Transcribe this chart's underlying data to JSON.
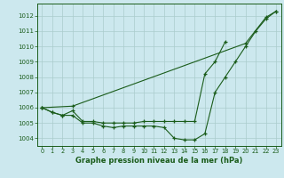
{
  "title": "Graphe pression niveau de la mer (hPa)",
  "background_color": "#cce8ee",
  "grid_color": "#aacccc",
  "line_color": "#1a5c1a",
  "xlim": [
    -0.5,
    23.5
  ],
  "ylim": [
    1003.5,
    1012.8
  ],
  "yticks": [
    1004,
    1005,
    1006,
    1007,
    1008,
    1009,
    1010,
    1011,
    1012
  ],
  "xticks": [
    0,
    1,
    2,
    3,
    4,
    5,
    6,
    7,
    8,
    9,
    10,
    11,
    12,
    13,
    14,
    15,
    16,
    17,
    18,
    19,
    20,
    21,
    22,
    23
  ],
  "hours": [
    0,
    1,
    2,
    3,
    4,
    5,
    6,
    7,
    8,
    9,
    10,
    11,
    12,
    13,
    14,
    15,
    16,
    17,
    18,
    19,
    20,
    21,
    22,
    23
  ],
  "line1": [
    1006.0,
    1005.7,
    1005.5,
    1005.5,
    1005.0,
    1005.0,
    1004.8,
    1004.7,
    1004.8,
    1004.8,
    1004.8,
    1004.8,
    1004.7,
    1004.0,
    1003.9,
    1003.9,
    1004.3,
    1007.0,
    1008.0,
    1009.0,
    1010.0,
    1011.0,
    1011.8,
    1012.3
  ],
  "line2": [
    1006.0,
    1005.7,
    1005.5,
    1005.8,
    1005.1,
    1005.1,
    1005.0,
    1005.0,
    1005.0,
    1005.0,
    1005.1,
    1005.1,
    1005.1,
    1005.1,
    1005.1,
    1005.1,
    1008.2,
    1009.0,
    1010.3,
    null,
    null,
    null,
    null,
    null
  ],
  "line3": [
    1006.0,
    null,
    null,
    1006.1,
    null,
    null,
    null,
    null,
    null,
    null,
    null,
    null,
    null,
    null,
    null,
    null,
    null,
    null,
    null,
    null,
    1010.2,
    null,
    1011.9,
    1012.3
  ]
}
